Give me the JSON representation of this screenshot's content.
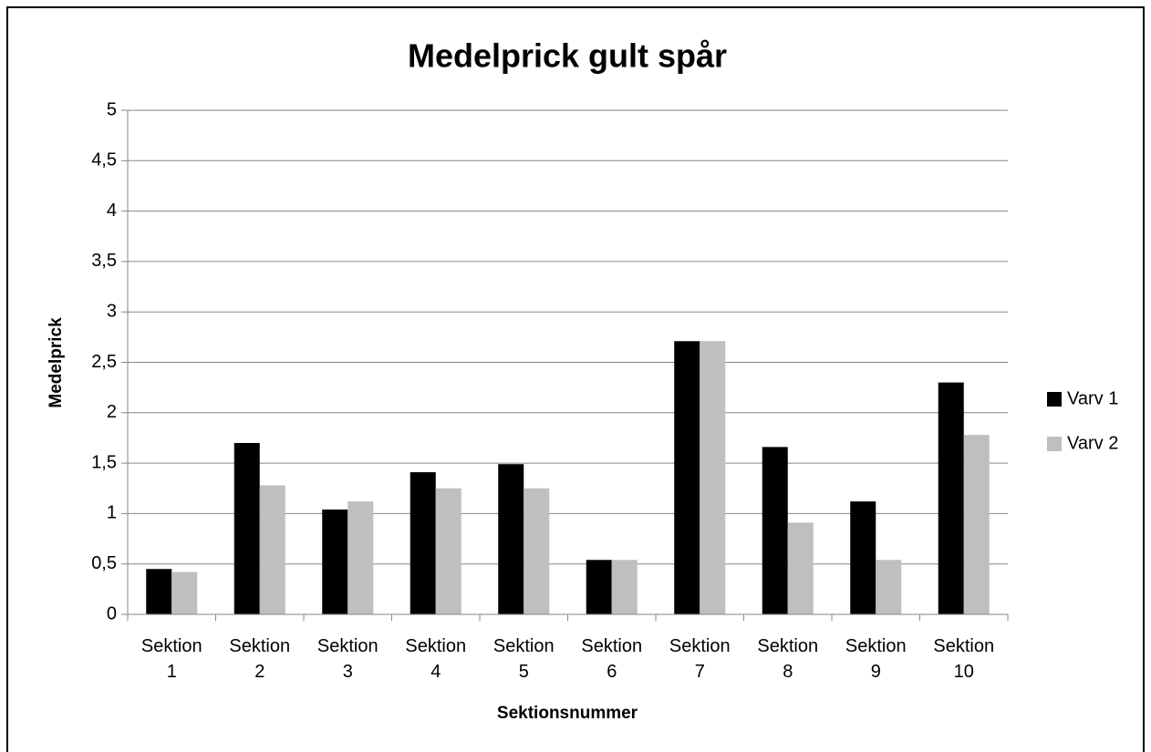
{
  "chart_data": {
    "type": "bar",
    "title": "Medelprick gult spår",
    "x_label": "Sektionsnummer",
    "y_label": "Medelprick",
    "categories": [
      "Sektion 1",
      "Sektion 2",
      "Sektion 3",
      "Sektion 4",
      "Sektion 5",
      "Sektion 6",
      "Sektion 7",
      "Sektion 8",
      "Sektion 9",
      "Sektion 10"
    ],
    "series": [
      {
        "name": "Varv 1",
        "color": "#000000",
        "values": [
          0.45,
          1.7,
          1.04,
          1.41,
          1.49,
          0.54,
          2.71,
          1.66,
          1.12,
          2.3
        ]
      },
      {
        "name": "Varv 2",
        "color": "#bfbfbf",
        "values": [
          0.42,
          1.28,
          1.12,
          1.25,
          1.25,
          0.54,
          2.71,
          0.91,
          0.54,
          1.78
        ]
      }
    ],
    "ylim": [
      0,
      5
    ],
    "yticks": [
      0,
      {
        "value": 0.5,
        "label": "0,5"
      },
      1,
      {
        "value": 1.5,
        "label": "1,5"
      },
      2,
      {
        "value": 2.5,
        "label": "2,5"
      },
      3,
      {
        "value": 3.5,
        "label": "3,5"
      },
      4,
      {
        "value": 4.5,
        "label": "4,5"
      },
      5
    ],
    "grid": true,
    "legend": "right"
  }
}
